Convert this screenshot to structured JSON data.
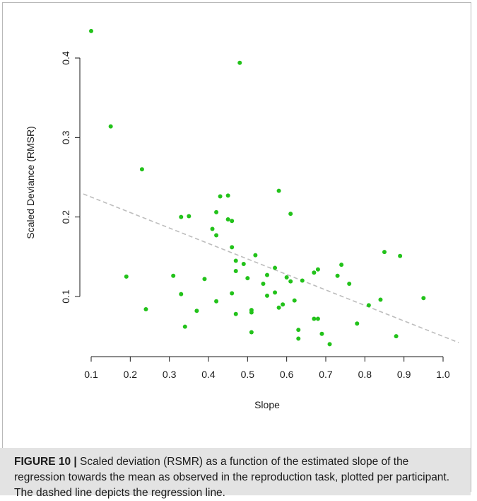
{
  "chart_data": {
    "type": "scatter",
    "xlabel": "Slope",
    "ylabel": "Scaled Deviance (RMSR)",
    "xlim": [
      0.08,
      1.05
    ],
    "ylim": [
      0.02,
      0.45
    ],
    "x_ticks": [
      "0.1",
      "0.2",
      "0.3",
      "0.4",
      "0.5",
      "0.6",
      "0.7",
      "0.8",
      "0.9",
      "1.0"
    ],
    "y_ticks": [
      "0.1",
      "0.2",
      "0.3",
      "0.4"
    ],
    "point_color": "#22c21a",
    "regression_line": {
      "x": [
        0.08,
        1.04
      ],
      "y": [
        0.229,
        0.042
      ],
      "color": "#bdbdbd",
      "style": "dashed"
    },
    "series": [
      {
        "points": [
          [
            0.1,
            0.434
          ],
          [
            0.15,
            0.314
          ],
          [
            0.19,
            0.125
          ],
          [
            0.23,
            0.26
          ],
          [
            0.24,
            0.084
          ],
          [
            0.31,
            0.126
          ],
          [
            0.33,
            0.2
          ],
          [
            0.33,
            0.103
          ],
          [
            0.34,
            0.062
          ],
          [
            0.35,
            0.201
          ],
          [
            0.37,
            0.082
          ],
          [
            0.39,
            0.122
          ],
          [
            0.41,
            0.185
          ],
          [
            0.42,
            0.177
          ],
          [
            0.42,
            0.206
          ],
          [
            0.42,
            0.094
          ],
          [
            0.43,
            0.226
          ],
          [
            0.45,
            0.227
          ],
          [
            0.45,
            0.197
          ],
          [
            0.46,
            0.195
          ],
          [
            0.46,
            0.162
          ],
          [
            0.46,
            0.104
          ],
          [
            0.47,
            0.145
          ],
          [
            0.47,
            0.132
          ],
          [
            0.47,
            0.078
          ],
          [
            0.48,
            0.394
          ],
          [
            0.49,
            0.141
          ],
          [
            0.5,
            0.123
          ],
          [
            0.51,
            0.083
          ],
          [
            0.51,
            0.08
          ],
          [
            0.51,
            0.055
          ],
          [
            0.52,
            0.152
          ],
          [
            0.54,
            0.116
          ],
          [
            0.55,
            0.127
          ],
          [
            0.55,
            0.101
          ],
          [
            0.57,
            0.136
          ],
          [
            0.57,
            0.105
          ],
          [
            0.58,
            0.233
          ],
          [
            0.58,
            0.086
          ],
          [
            0.59,
            0.09
          ],
          [
            0.6,
            0.124
          ],
          [
            0.61,
            0.204
          ],
          [
            0.61,
            0.119
          ],
          [
            0.62,
            0.095
          ],
          [
            0.63,
            0.058
          ],
          [
            0.63,
            0.047
          ],
          [
            0.64,
            0.12
          ],
          [
            0.67,
            0.13
          ],
          [
            0.68,
            0.134
          ],
          [
            0.67,
            0.072
          ],
          [
            0.68,
            0.072
          ],
          [
            0.69,
            0.053
          ],
          [
            0.71,
            0.04
          ],
          [
            0.73,
            0.126
          ],
          [
            0.74,
            0.14
          ],
          [
            0.76,
            0.116
          ],
          [
            0.78,
            0.066
          ],
          [
            0.81,
            0.089
          ],
          [
            0.84,
            0.096
          ],
          [
            0.85,
            0.156
          ],
          [
            0.88,
            0.05
          ],
          [
            0.89,
            0.151
          ],
          [
            0.95,
            0.098
          ]
        ]
      }
    ]
  },
  "caption": {
    "label": "FIGURE 10 |",
    "text": " Scaled deviation (RSMR) as a function of the estimated slope of the regression towards the mean as observed in the reproduction task, plotted per participant. The dashed line depicts the regression line."
  }
}
